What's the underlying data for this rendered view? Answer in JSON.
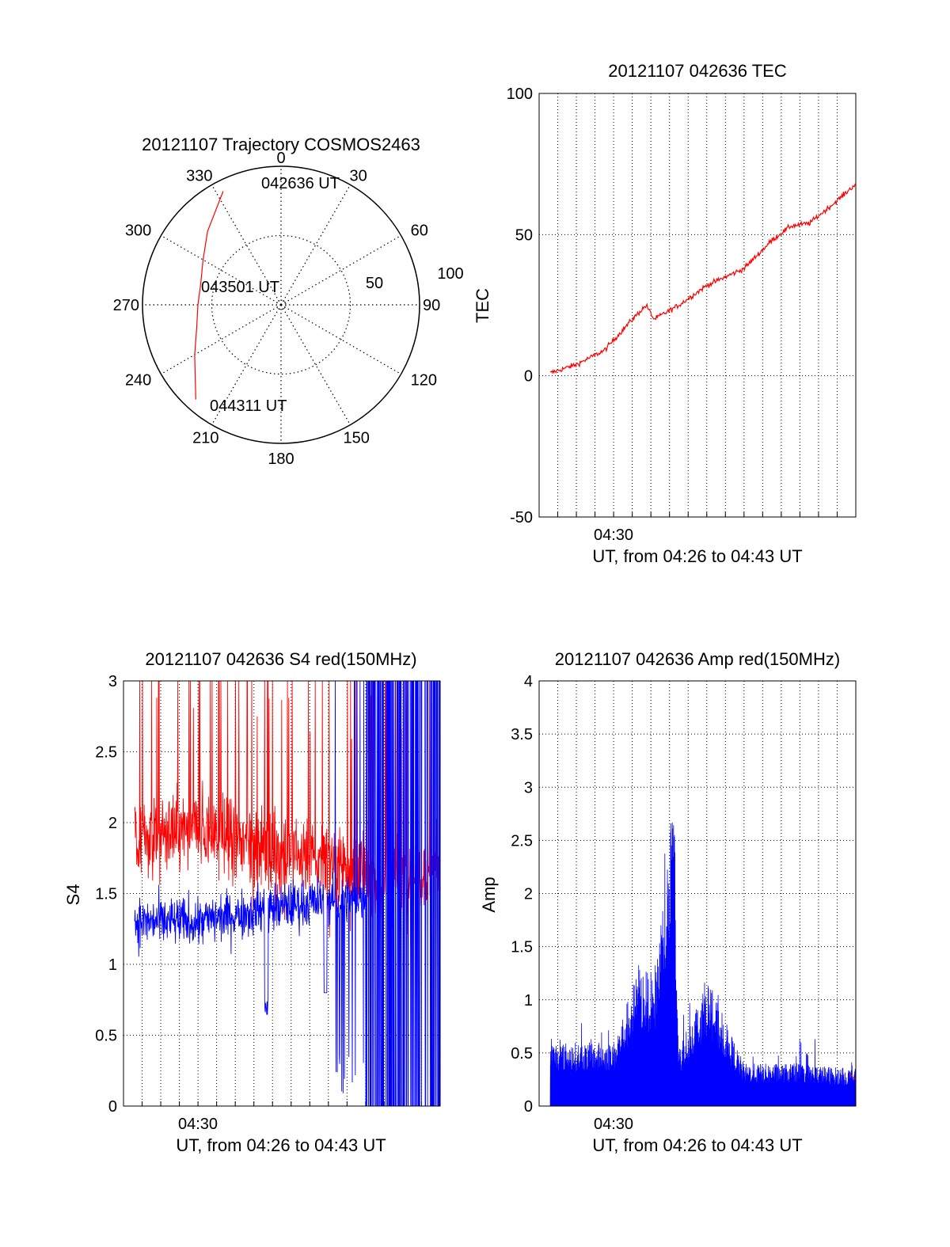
{
  "colors": {
    "red": "#ff0000",
    "blue": "#0000ff",
    "axis": "#000000",
    "grid": "#000000"
  },
  "chart_data": [
    {
      "id": "polar",
      "type": "scatter",
      "subtype": "polar-trajectory",
      "title": "20121107 Trajectory COSMOS2463",
      "azimuth_labels": [
        "0",
        "30",
        "60",
        "90",
        "120",
        "150",
        "180",
        "210",
        "240",
        "270",
        "300",
        "330"
      ],
      "azimuths": [
        0,
        30,
        60,
        90,
        120,
        150,
        180,
        210,
        240,
        270,
        300,
        330
      ],
      "ring_labels": [
        "50",
        "100"
      ],
      "ring_values": [
        50,
        100
      ],
      "trajectory": {
        "azimuth": [
          333,
          315,
          300,
          285,
          270,
          255,
          240,
          222
        ],
        "radius": [
          92,
          75,
          65,
          60,
          60,
          63,
          72,
          92
        ]
      },
      "annotations": [
        "042636 UT",
        "043501 UT",
        "044311 UT"
      ],
      "grid": true
    },
    {
      "id": "tec",
      "type": "line",
      "title": "20121107 042636 TEC",
      "ylabel": "TEC",
      "xlabel": "UT, from 04:26 to 04:43 UT",
      "xtick_labels": [
        "04:30"
      ],
      "ytick_labels": [
        "-50",
        "0",
        "50",
        "100"
      ],
      "yticks": [
        -50,
        0,
        50,
        100
      ],
      "ylim": [
        -50,
        100
      ],
      "xlim": [
        "04:26",
        "04:43"
      ],
      "grid": true,
      "series": [
        {
          "color": "#ff0000",
          "x": [
            "04:26:36",
            "04:28:00",
            "04:29:30",
            "04:31:00",
            "04:31:45",
            "04:32:10",
            "04:33:30",
            "04:35:00",
            "04:37:00",
            "04:38:30",
            "04:39:30",
            "04:40:30",
            "04:42:00",
            "04:43:00"
          ],
          "y": [
            1,
            4,
            9,
            20,
            25,
            20,
            25,
            32,
            38,
            48,
            53,
            54,
            62,
            68
          ]
        }
      ]
    },
    {
      "id": "s4",
      "type": "line",
      "title": "20121107 042636 S4 red(150MHz)",
      "ylabel": "S4",
      "xlabel": "UT, from 04:26 to 04:43 UT",
      "xtick_labels": [
        "04:30"
      ],
      "ytick_labels": [
        "0",
        "0.5",
        "1",
        "1.5",
        "2",
        "2.5",
        "3"
      ],
      "yticks": [
        0,
        0.5,
        1,
        1.5,
        2,
        2.5,
        3
      ],
      "ylim": [
        0,
        3
      ],
      "xlim": [
        "04:26",
        "04:43"
      ],
      "grid": true,
      "series": [
        {
          "color": "#ff0000",
          "x": [
            "04:26:36",
            "04:30:00",
            "04:34:00",
            "04:37:00",
            "04:40:00",
            "04:43:00"
          ],
          "y": [
            1.9,
            1.95,
            1.8,
            1.75,
            1.6,
            1.7
          ]
        },
        {
          "color": "#0000ff",
          "x": [
            "04:26:36",
            "04:30:00",
            "04:34:00",
            "04:37:00",
            "04:40:00",
            "04:43:00"
          ],
          "y": [
            1.3,
            1.3,
            1.4,
            1.45,
            1.5,
            1.5
          ]
        }
      ]
    },
    {
      "id": "amp",
      "type": "line",
      "title": "20121107 042636 Amp red(150MHz)",
      "ylabel": "Amp",
      "xlabel": "UT, from 04:26 to 04:43 UT",
      "xtick_labels": [
        "04:30"
      ],
      "ytick_labels": [
        "0",
        "0.5",
        "1",
        "1.5",
        "2",
        "2.5",
        "3",
        "3.5",
        "4"
      ],
      "yticks": [
        0,
        0.5,
        1,
        1.5,
        2,
        2.5,
        3,
        3.5,
        4
      ],
      "ylim": [
        0,
        4
      ],
      "xlim": [
        "04:26",
        "04:43"
      ],
      "grid": true,
      "series": [
        {
          "color": "#0000ff",
          "x": [
            "04:26:36",
            "04:30:00",
            "04:31:20",
            "04:32:10",
            "04:33:10",
            "04:33:30",
            "04:35:00",
            "04:37:00",
            "04:40:00",
            "04:43:00"
          ],
          "y": [
            0.6,
            0.6,
            1.3,
            1.25,
            2.75,
            0.55,
            1.2,
            0.4,
            0.4,
            0.35
          ]
        }
      ]
    }
  ]
}
